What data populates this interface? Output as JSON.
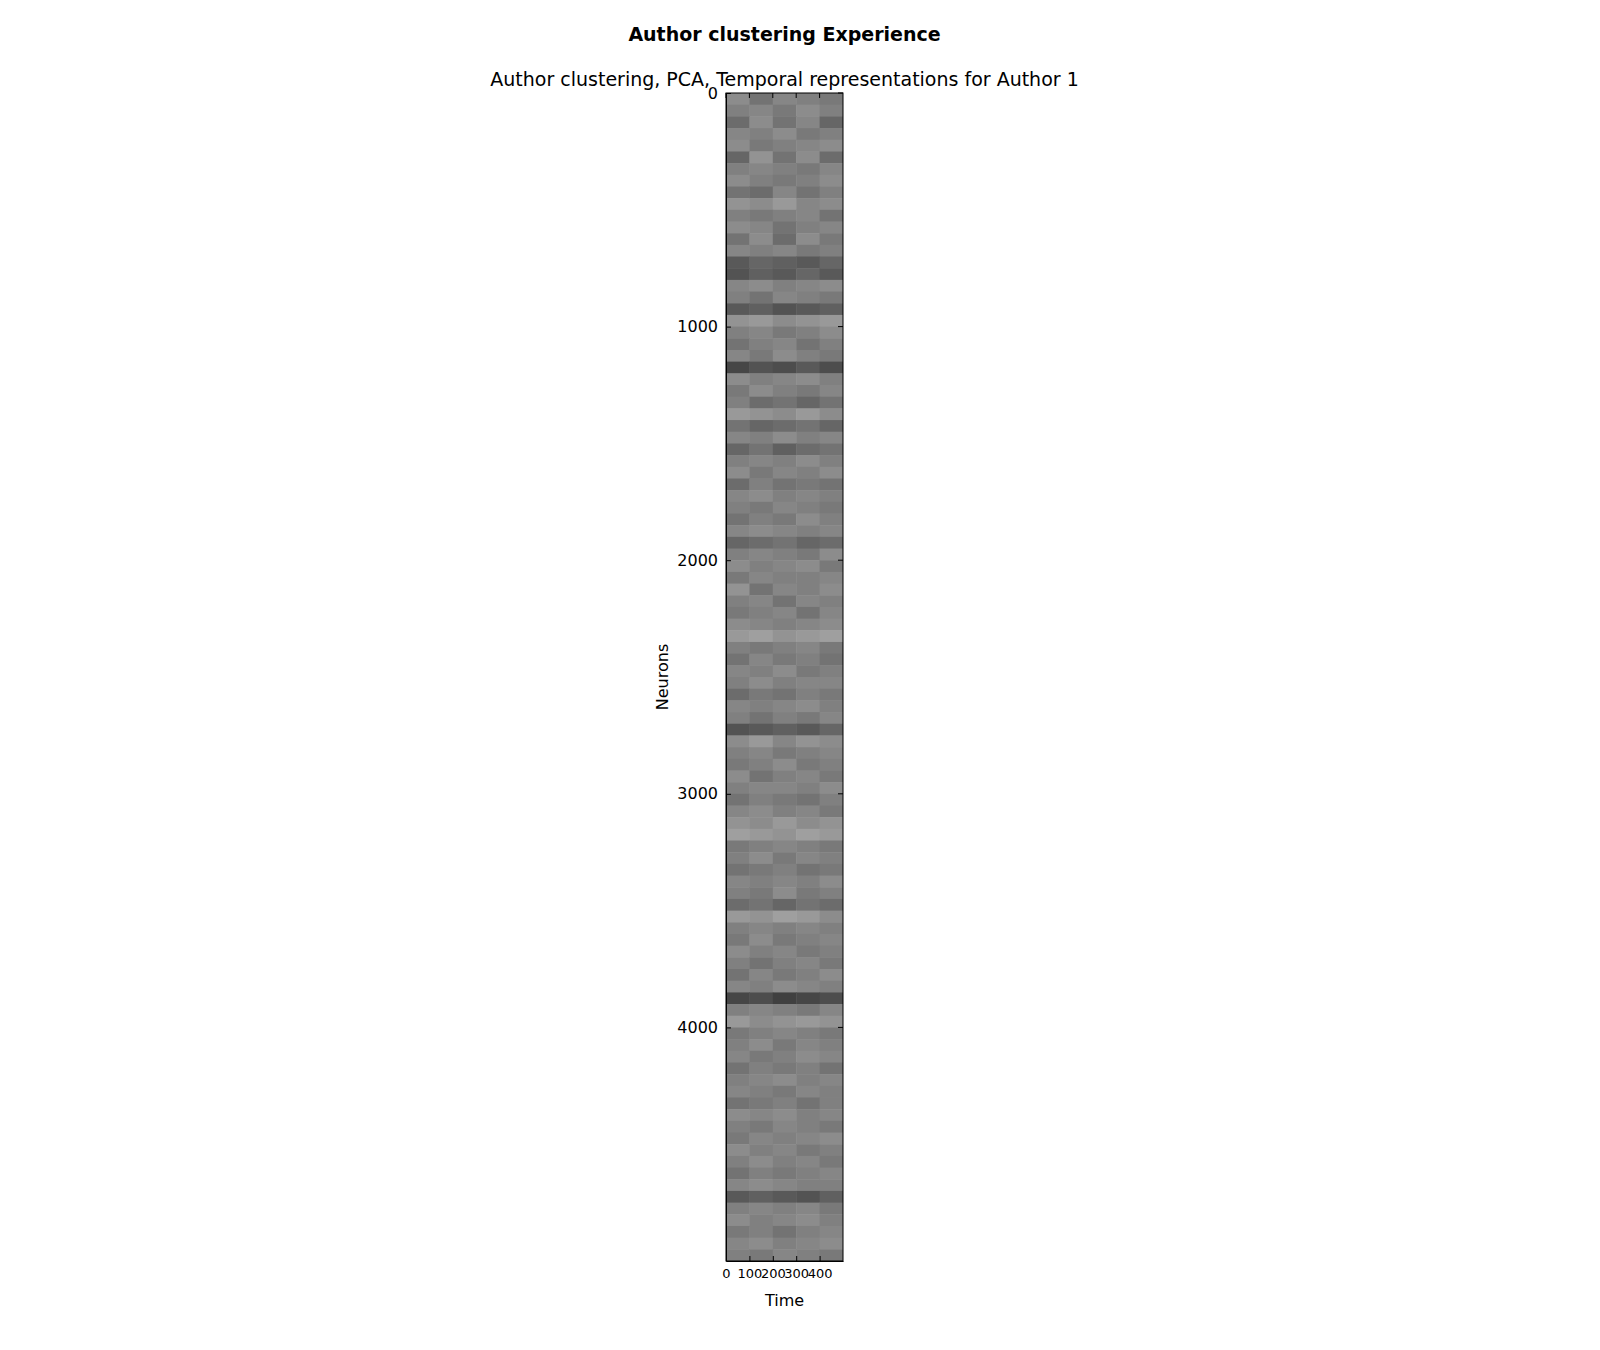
{
  "chart_data": {
    "type": "heatmap",
    "title": "Author clustering Experience",
    "subtitle": "Author clustering, PCA, Temporal representations for Author 1",
    "x_label": "Time",
    "y_label": "Neurons",
    "xlim": [
      0,
      500
    ],
    "xticks": [
      0,
      100,
      200,
      300,
      400
    ],
    "ylim": [
      0,
      5000
    ],
    "yticks": [
      0,
      1000,
      2000,
      3000,
      4000
    ],
    "zlim": [
      -1,
      1
    ],
    "z": [
      [
        0.1,
        -0.1,
        0.05,
        0,
        -0.05
      ],
      [
        0,
        0.05,
        -0.05,
        0.1,
        0
      ],
      [
        -0.15,
        0.1,
        -0.1,
        0.05,
        -0.2
      ],
      [
        0.05,
        0,
        0.1,
        -0.05,
        0
      ],
      [
        0.1,
        -0.05,
        0,
        0.05,
        0.1
      ],
      [
        -0.2,
        0.15,
        -0.1,
        0.1,
        -0.15
      ],
      [
        0,
        0.05,
        0,
        -0.05,
        0.05
      ],
      [
        0.1,
        0,
        -0.05,
        0,
        0.1
      ],
      [
        -0.1,
        -0.15,
        0.05,
        -0.1,
        0
      ],
      [
        0.15,
        0.1,
        0.2,
        0.05,
        0.1
      ],
      [
        0,
        -0.05,
        0,
        0.05,
        -0.1
      ],
      [
        0.1,
        0.05,
        -0.1,
        0,
        0.05
      ],
      [
        -0.1,
        0.1,
        -0.15,
        0.1,
        -0.05
      ],
      [
        0.05,
        0,
        0.05,
        -0.05,
        0
      ],
      [
        -0.3,
        -0.2,
        -0.25,
        -0.3,
        -0.2
      ],
      [
        -0.35,
        -0.25,
        -0.3,
        -0.2,
        -0.3
      ],
      [
        0.05,
        0.1,
        0,
        0.05,
        0.1
      ],
      [
        0,
        -0.1,
        0.05,
        0,
        -0.05
      ],
      [
        -0.3,
        -0.25,
        -0.35,
        -0.3,
        -0.25
      ],
      [
        0.15,
        0.2,
        0.1,
        0.15,
        0.2
      ],
      [
        0,
        0.05,
        -0.05,
        0,
        0.1
      ],
      [
        -0.1,
        0,
        0.05,
        -0.1,
        0
      ],
      [
        0.05,
        -0.05,
        0.1,
        0,
        -0.05
      ],
      [
        -0.45,
        -0.35,
        -0.4,
        -0.3,
        -0.4
      ],
      [
        0.1,
        0,
        0.05,
        0.1,
        0
      ],
      [
        -0.05,
        0.1,
        0,
        -0.05,
        0.05
      ],
      [
        0,
        -0.15,
        -0.1,
        -0.2,
        -0.1
      ],
      [
        0.2,
        0.15,
        0.1,
        0.2,
        0.1
      ],
      [
        -0.1,
        -0.2,
        -0.15,
        -0.1,
        -0.2
      ],
      [
        0.05,
        0,
        0.1,
        0,
        0.05
      ],
      [
        -0.2,
        -0.1,
        -0.25,
        -0.15,
        -0.1
      ],
      [
        0,
        0.05,
        0,
        0.1,
        0
      ],
      [
        0.1,
        -0.05,
        0.05,
        0,
        0.1
      ],
      [
        -0.15,
        0,
        -0.1,
        -0.05,
        -0.1
      ],
      [
        0.05,
        0.1,
        0,
        0.05,
        0
      ],
      [
        0,
        -0.05,
        0.05,
        0,
        -0.05
      ],
      [
        -0.1,
        0,
        -0.05,
        0.1,
        0
      ],
      [
        0.05,
        0.1,
        0.05,
        0,
        0.05
      ],
      [
        -0.2,
        -0.15,
        -0.1,
        -0.2,
        -0.15
      ],
      [
        0,
        0.05,
        0,
        -0.05,
        0.1
      ],
      [
        0.1,
        0,
        0.05,
        0.1,
        -0.05
      ],
      [
        -0.05,
        0.05,
        0,
        0,
        0.05
      ],
      [
        0.15,
        -0.1,
        0.05,
        0,
        0.1
      ],
      [
        0,
        0.05,
        -0.1,
        0.05,
        0
      ],
      [
        -0.05,
        0,
        0.05,
        -0.1,
        0.05
      ],
      [
        0.1,
        0.05,
        0,
        0.05,
        0.1
      ],
      [
        0.2,
        0.25,
        0.15,
        0.2,
        0.25
      ],
      [
        0,
        -0.05,
        0,
        0.05,
        -0.05
      ],
      [
        -0.1,
        0.05,
        -0.05,
        0,
        -0.1
      ],
      [
        0.05,
        0,
        0.1,
        -0.05,
        0
      ],
      [
        0,
        0.1,
        0,
        0.05,
        0.05
      ],
      [
        -0.15,
        -0.05,
        -0.1,
        0,
        -0.05
      ],
      [
        0.05,
        0,
        0.05,
        0.1,
        0
      ],
      [
        0,
        -0.1,
        0,
        -0.05,
        0.05
      ],
      [
        -0.35,
        -0.3,
        -0.25,
        -0.3,
        -0.2
      ],
      [
        0.1,
        0.2,
        0.05,
        0.15,
        0.1
      ],
      [
        0,
        0.05,
        -0.05,
        0,
        0.05
      ],
      [
        -0.05,
        0,
        0.1,
        -0.05,
        0
      ],
      [
        0.1,
        -0.1,
        0,
        0.05,
        -0.05
      ],
      [
        0,
        0.05,
        0.05,
        0,
        0.1
      ],
      [
        -0.1,
        0,
        -0.05,
        -0.1,
        0
      ],
      [
        0.05,
        0.1,
        0,
        0.05,
        -0.05
      ],
      [
        0.15,
        0.1,
        0.2,
        0.1,
        0.15
      ],
      [
        0.25,
        0.2,
        0.15,
        0.25,
        0.2
      ],
      [
        -0.05,
        0,
        0.05,
        0,
        -0.05
      ],
      [
        0,
        0.1,
        -0.05,
        0.05,
        0
      ],
      [
        -0.1,
        -0.05,
        0,
        -0.1,
        -0.05
      ],
      [
        0.05,
        0,
        0.05,
        0,
        0.1
      ],
      [
        0,
        -0.05,
        0.1,
        -0.05,
        0
      ],
      [
        -0.15,
        -0.1,
        -0.2,
        -0.1,
        -0.15
      ],
      [
        0.2,
        0.15,
        0.25,
        0.2,
        0.1
      ],
      [
        0,
        0.05,
        0,
        0.05,
        0
      ],
      [
        -0.05,
        0.1,
        -0.05,
        0,
        0.05
      ],
      [
        0.1,
        0,
        0.05,
        -0.05,
        0
      ],
      [
        0,
        -0.1,
        0,
        0.05,
        -0.05
      ],
      [
        -0.1,
        0.05,
        -0.05,
        0,
        0.1
      ],
      [
        0.05,
        0,
        0.1,
        0.05,
        0
      ],
      [
        -0.45,
        -0.4,
        -0.5,
        -0.45,
        -0.4
      ],
      [
        0,
        0.05,
        0,
        -0.05,
        0.05
      ],
      [
        0.2,
        0.1,
        0.15,
        0.2,
        0.15
      ],
      [
        -0.05,
        0,
        0.05,
        0,
        -0.05
      ],
      [
        0,
        0.1,
        -0.05,
        0.05,
        0
      ],
      [
        0.05,
        -0.05,
        0,
        0.1,
        0.05
      ],
      [
        -0.1,
        0,
        -0.05,
        0,
        -0.1
      ],
      [
        0,
        0.05,
        0.1,
        0,
        0.05
      ],
      [
        0.05,
        0,
        -0.05,
        0.05,
        0
      ],
      [
        -0.1,
        -0.05,
        0,
        -0.1,
        0
      ],
      [
        0.1,
        0.05,
        0.1,
        0,
        0.05
      ],
      [
        0,
        -0.05,
        0.05,
        0,
        -0.05
      ],
      [
        -0.05,
        0.05,
        0,
        0.05,
        0.1
      ],
      [
        0.1,
        0,
        0.05,
        -0.05,
        0
      ],
      [
        0,
        0.1,
        0,
        0.05,
        -0.05
      ],
      [
        -0.1,
        0,
        -0.05,
        0,
        0.05
      ],
      [
        0.05,
        0.1,
        0.05,
        0,
        0
      ],
      [
        -0.3,
        -0.25,
        -0.3,
        -0.35,
        -0.25
      ],
      [
        0,
        0.05,
        0,
        0.05,
        -0.05
      ],
      [
        0.1,
        0,
        0.05,
        0.1,
        0
      ],
      [
        -0.05,
        0,
        -0.1,
        0,
        0.05
      ],
      [
        0.05,
        0.1,
        0,
        0.05,
        0.1
      ],
      [
        0,
        -0.05,
        0.05,
        0,
        -0.05
      ]
    ]
  }
}
